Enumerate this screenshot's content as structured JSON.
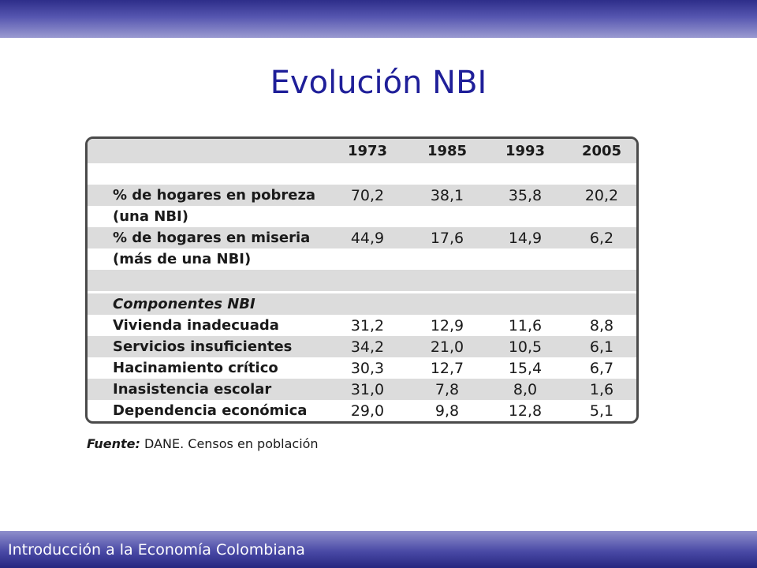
{
  "slide": {
    "title": "Evolución NBI",
    "footer": "Introducción a la Economía Colombiana"
  },
  "table": {
    "years": [
      "1973",
      "1985",
      "1993",
      "2005"
    ],
    "rows": [
      {
        "label": "% de hogares en pobreza",
        "values": [
          "70,2",
          "38,1",
          "35,8",
          "20,2"
        ]
      },
      {
        "label": "(una NBI)"
      },
      {
        "label": "% de hogares en miseria",
        "values": [
          "44,9",
          "17,6",
          "14,9",
          "6,2"
        ]
      },
      {
        "label": "(más de una NBI)"
      },
      {
        "label": "Componentes NBI"
      },
      {
        "label": "Vivienda inadecuada",
        "values": [
          "31,2",
          "12,9",
          "11,6",
          "8,8"
        ]
      },
      {
        "label": "Servicios insuficientes",
        "values": [
          "34,2",
          "21,0",
          "10,5",
          "6,1"
        ]
      },
      {
        "label": "Hacinamiento crítico",
        "values": [
          "30,3",
          "12,7",
          "15,4",
          "6,7"
        ]
      },
      {
        "label": "Inasistencia escolar",
        "values": [
          "31,0",
          "7,8",
          "8,0",
          "1,6"
        ]
      },
      {
        "label": "Dependencia económica",
        "values": [
          "29,0",
          "9,8",
          "12,8",
          "5,1"
        ]
      }
    ]
  },
  "source": {
    "label": "Fuente:",
    "text": "DANE. Censos en población"
  }
}
